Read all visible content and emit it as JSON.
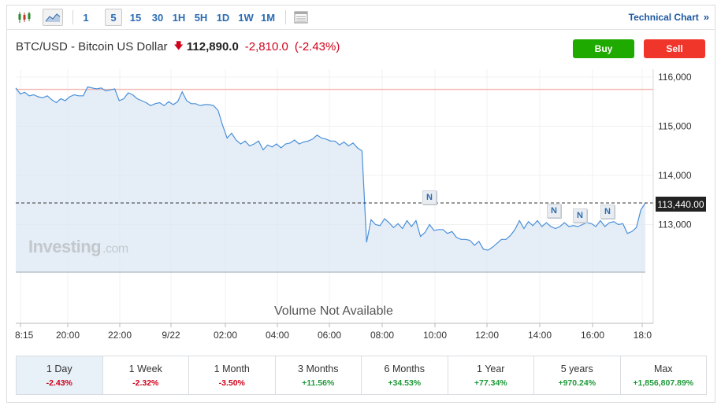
{
  "toolbar": {
    "timeframes": [
      "1",
      "5",
      "15",
      "30",
      "1H",
      "5H",
      "1D",
      "1W",
      "1M"
    ],
    "active_timeframe": "5",
    "technical_chart_label": "Technical Chart",
    "technical_chart_arrow": "»"
  },
  "header": {
    "instrument": "BTC/USD - Bitcoin US Dollar",
    "price": "112,890.0",
    "change": "-2,810.0",
    "change_pct": "(-2.43%)"
  },
  "actions": {
    "buy": "Buy",
    "sell": "Sell"
  },
  "chart": {
    "current_price_label": "113,440.00",
    "watermark": "Investing",
    "watermark_suffix": ".com",
    "volume_note": "Volume Not Available",
    "news_badge": "N",
    "accent_color": "#4a90d9",
    "fill_color": "#dce8f4"
  },
  "chart_data": {
    "type": "area",
    "y_ticks": [
      "116,000",
      "115,000",
      "114,000",
      "113,000"
    ],
    "x_ticks": [
      "8:15",
      "20:00",
      "22:00",
      "9/22",
      "02:00",
      "04:00",
      "06:00",
      "08:00",
      "10:00",
      "12:00",
      "14:00",
      "16:00",
      "18:0"
    ],
    "ylim": [
      112300,
      116250
    ],
    "previous_close": 115750,
    "last_price": 113440,
    "series": [
      {
        "values": [
          115780,
          115660,
          115690,
          115620,
          115640,
          115600,
          115580,
          115620,
          115540,
          115480,
          115560,
          115520,
          115600,
          115640,
          115620,
          115620,
          115800,
          115780,
          115760,
          115780,
          115720,
          115740,
          115760,
          115520,
          115560,
          115680,
          115640,
          115560,
          115520,
          115480,
          115420,
          115460,
          115480,
          115420,
          115500,
          115440,
          115500,
          115700,
          115520,
          115460,
          115460,
          115420,
          115440,
          115440,
          115420,
          115320,
          115020,
          114760,
          114860,
          114720,
          114640,
          114700,
          114600,
          114640,
          114700,
          114520,
          114620,
          114580,
          114640,
          114560,
          114640,
          114660,
          114720,
          114640,
          114680,
          114700,
          114740,
          114820,
          114760,
          114740,
          114700,
          114700,
          114620,
          114680,
          114600,
          114660,
          114560,
          114500,
          112640,
          113100,
          113000,
          112980,
          113120,
          113040,
          112940,
          113020,
          112920,
          113080,
          112960,
          113080,
          112760,
          112840,
          113000,
          112880,
          112900,
          112900,
          112820,
          112860,
          112740,
          112700,
          112700,
          112680,
          112580,
          112660,
          112500,
          112480,
          112540,
          112620,
          112700,
          112700,
          112780,
          112900,
          113080,
          112920,
          113060,
          112980,
          113080,
          112960,
          113040,
          112960,
          112920,
          112960,
          113040,
          112960,
          112980,
          112960,
          113000,
          113040,
          113020,
          112960,
          113080,
          112960,
          113040,
          113060,
          113000,
          113020,
          112820,
          112860,
          112940,
          113300,
          113440
        ]
      }
    ]
  },
  "periods": [
    {
      "label": "1 Day",
      "value": "-2.43%",
      "sign": "neg"
    },
    {
      "label": "1 Week",
      "value": "-2.32%",
      "sign": "neg"
    },
    {
      "label": "1 Month",
      "value": "-3.50%",
      "sign": "neg"
    },
    {
      "label": "3 Months",
      "value": "+11.56%",
      "sign": "pos"
    },
    {
      "label": "6 Months",
      "value": "+34.53%",
      "sign": "pos"
    },
    {
      "label": "1 Year",
      "value": "+77.34%",
      "sign": "pos"
    },
    {
      "label": "5 years",
      "value": "+970.24%",
      "sign": "pos"
    },
    {
      "label": "Max",
      "value": "+1,856,807.89%",
      "sign": "pos"
    }
  ],
  "active_period": "1 Day"
}
